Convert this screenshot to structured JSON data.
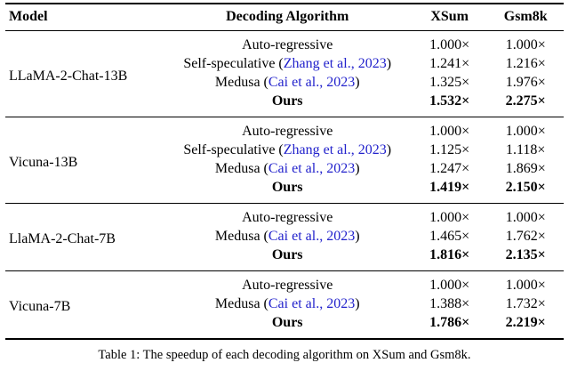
{
  "header": {
    "model": "Model",
    "algorithm": "Decoding Algorithm",
    "xsum": "XSum",
    "gsm8k": "Gsm8k"
  },
  "groups": [
    {
      "model": "LLaMA-2-Chat-13B",
      "rows": [
        {
          "prefix": "Auto-regressive",
          "cite": "",
          "suffix": "",
          "xsum": "1.000×",
          "gsm8k": "1.000×"
        },
        {
          "prefix": "Self-speculative (",
          "cite": "Zhang et al., 2023",
          "suffix": ")",
          "xsum": "1.241×",
          "gsm8k": "1.216×"
        },
        {
          "prefix": "Medusa (",
          "cite": "Cai et al., 2023",
          "suffix": ")",
          "xsum": "1.325×",
          "gsm8k": "1.976×"
        },
        {
          "prefix": "Ours",
          "cite": "",
          "suffix": "",
          "xsum": "1.532×",
          "gsm8k": "2.275×"
        }
      ]
    },
    {
      "model": "Vicuna-13B",
      "rows": [
        {
          "prefix": "Auto-regressive",
          "cite": "",
          "suffix": "",
          "xsum": "1.000×",
          "gsm8k": "1.000×"
        },
        {
          "prefix": "Self-speculative (",
          "cite": "Zhang et al., 2023",
          "suffix": ")",
          "xsum": "1.125×",
          "gsm8k": "1.118×"
        },
        {
          "prefix": "Medusa (",
          "cite": "Cai et al., 2023",
          "suffix": ")",
          "xsum": "1.247×",
          "gsm8k": "1.869×"
        },
        {
          "prefix": "Ours",
          "cite": "",
          "suffix": "",
          "xsum": "1.419×",
          "gsm8k": "2.150×"
        }
      ]
    },
    {
      "model": "LlaMA-2-Chat-7B",
      "rows": [
        {
          "prefix": "Auto-regressive",
          "cite": "",
          "suffix": "",
          "xsum": "1.000×",
          "gsm8k": "1.000×"
        },
        {
          "prefix": "Medusa (",
          "cite": "Cai et al., 2023",
          "suffix": ")",
          "xsum": "1.465×",
          "gsm8k": "1.762×"
        },
        {
          "prefix": "Ours",
          "cite": "",
          "suffix": "",
          "xsum": "1.816×",
          "gsm8k": "2.135×"
        }
      ]
    },
    {
      "model": "Vicuna-7B",
      "rows": [
        {
          "prefix": "Auto-regressive",
          "cite": "",
          "suffix": "",
          "xsum": "1.000×",
          "gsm8k": "1.000×"
        },
        {
          "prefix": "Medusa (",
          "cite": "Cai et al., 2023",
          "suffix": ")",
          "xsum": "1.388×",
          "gsm8k": "1.732×"
        },
        {
          "prefix": "Ours",
          "cite": "",
          "suffix": "",
          "xsum": "1.786×",
          "gsm8k": "2.219×"
        }
      ]
    }
  ],
  "caption": "Table 1: The speedup of each decoding algorithm on XSum and Gsm8k.",
  "colors": {
    "citation": "#2222cc",
    "text": "#000000",
    "background": "#ffffff"
  }
}
